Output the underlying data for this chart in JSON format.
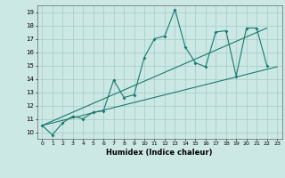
{
  "title": "",
  "xlabel": "Humidex (Indice chaleur)",
  "bg_color": "#cce8e4",
  "grid_color": "#aacfcb",
  "line_color": "#1a7a6e",
  "x_data": [
    0,
    1,
    2,
    3,
    4,
    5,
    6,
    7,
    8,
    9,
    10,
    11,
    12,
    13,
    14,
    15,
    16,
    17,
    18,
    19,
    20,
    21,
    22,
    23
  ],
  "y_main": [
    10.5,
    9.8,
    10.7,
    11.2,
    11.0,
    11.5,
    11.6,
    13.9,
    12.6,
    12.8,
    15.6,
    17.0,
    17.2,
    19.2,
    16.4,
    15.2,
    14.9,
    17.5,
    17.6,
    14.2,
    17.8,
    17.8,
    15.0,
    null
  ],
  "xlim": [
    -0.5,
    23.5
  ],
  "ylim": [
    9.5,
    19.5
  ],
  "yticks": [
    10,
    11,
    12,
    13,
    14,
    15,
    16,
    17,
    18,
    19
  ],
  "xticks": [
    0,
    1,
    2,
    3,
    4,
    5,
    6,
    7,
    8,
    9,
    10,
    11,
    12,
    13,
    14,
    15,
    16,
    17,
    18,
    19,
    20,
    21,
    22,
    23
  ],
  "trend1_x": [
    0,
    22
  ],
  "trend1_y": [
    10.5,
    17.8
  ],
  "trend2_x": [
    0,
    23
  ],
  "trend2_y": [
    10.5,
    14.9
  ]
}
